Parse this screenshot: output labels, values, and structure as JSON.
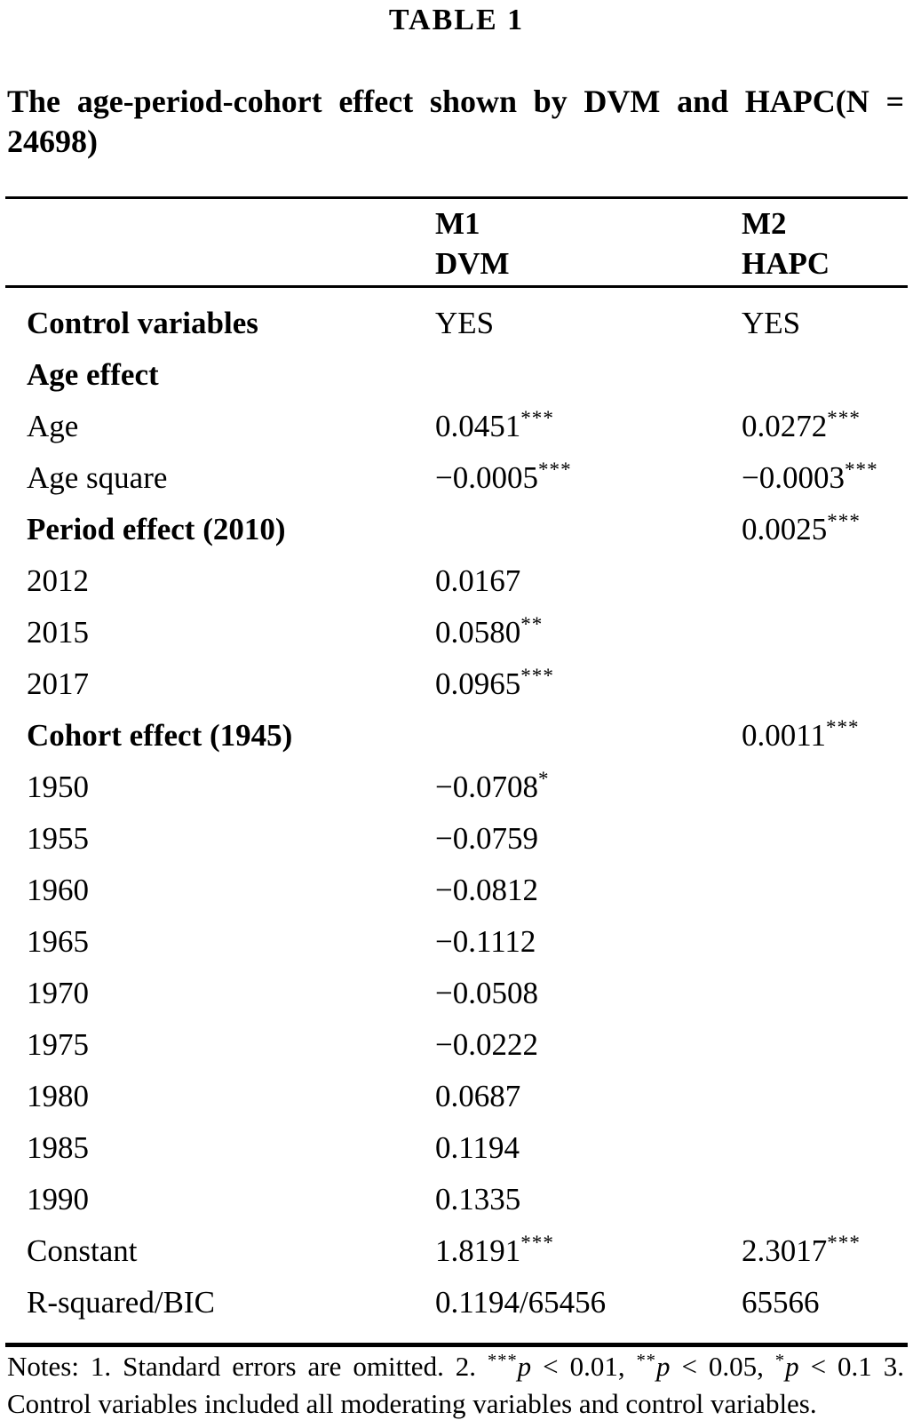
{
  "heading": "TABLE 1",
  "caption": {
    "full": "The age-period-cohort effect shown by DVM and HAPC(N = 24698)",
    "line1": "The age-period-cohort effect shown by DVM and HAPC(N =",
    "line2": "24698)"
  },
  "columns": [
    {
      "id": "m1",
      "line1": "M1",
      "line2": "DVM"
    },
    {
      "id": "m2",
      "line1": "M2",
      "line2": "HAPC"
    }
  ],
  "rows": [
    {
      "label": "Control variables",
      "bold": true,
      "m1": "YES",
      "m1_sup": "",
      "m2": "YES",
      "m2_sup": ""
    },
    {
      "label": "Age effect",
      "bold": true,
      "m1": "",
      "m1_sup": "",
      "m2": "",
      "m2_sup": ""
    },
    {
      "label": "Age",
      "bold": false,
      "m1": "0.0451",
      "m1_sup": "***",
      "m2": "0.0272",
      "m2_sup": "***"
    },
    {
      "label": "Age square",
      "bold": false,
      "m1": "−0.0005",
      "m1_sup": "***",
      "m2": "−0.0003",
      "m2_sup": "***"
    },
    {
      "label": "Period effect (2010)",
      "bold": true,
      "m1": "",
      "m1_sup": "",
      "m2": "0.0025",
      "m2_sup": "***"
    },
    {
      "label": "2012",
      "bold": false,
      "m1": "0.0167",
      "m1_sup": "",
      "m2": "",
      "m2_sup": ""
    },
    {
      "label": "2015",
      "bold": false,
      "m1": "0.0580",
      "m1_sup": "**",
      "m2": "",
      "m2_sup": ""
    },
    {
      "label": "2017",
      "bold": false,
      "m1": "0.0965",
      "m1_sup": "***",
      "m2": "",
      "m2_sup": ""
    },
    {
      "label": "Cohort effect (1945)",
      "bold": true,
      "m1": "",
      "m1_sup": "",
      "m2": "0.0011",
      "m2_sup": "***"
    },
    {
      "label": "1950",
      "bold": false,
      "m1": "−0.0708",
      "m1_sup": "*",
      "m2": "",
      "m2_sup": ""
    },
    {
      "label": "1955",
      "bold": false,
      "m1": "−0.0759",
      "m1_sup": "",
      "m2": "",
      "m2_sup": ""
    },
    {
      "label": "1960",
      "bold": false,
      "m1": "−0.0812",
      "m1_sup": "",
      "m2": "",
      "m2_sup": ""
    },
    {
      "label": "1965",
      "bold": false,
      "m1": "−0.1112",
      "m1_sup": "",
      "m2": "",
      "m2_sup": ""
    },
    {
      "label": "1970",
      "bold": false,
      "m1": "−0.0508",
      "m1_sup": "",
      "m2": "",
      "m2_sup": ""
    },
    {
      "label": "1975",
      "bold": false,
      "m1": "−0.0222",
      "m1_sup": "",
      "m2": "",
      "m2_sup": ""
    },
    {
      "label": "1980",
      "bold": false,
      "m1": "0.0687",
      "m1_sup": "",
      "m2": "",
      "m2_sup": ""
    },
    {
      "label": "1985",
      "bold": false,
      "m1": "0.1194",
      "m1_sup": "",
      "m2": "",
      "m2_sup": ""
    },
    {
      "label": "1990",
      "bold": false,
      "m1": "0.1335",
      "m1_sup": "",
      "m2": "",
      "m2_sup": ""
    },
    {
      "label": "Constant",
      "bold": false,
      "m1": "1.8191",
      "m1_sup": "***",
      "m2": "2.3017",
      "m2_sup": "***"
    },
    {
      "label": "R-squared/BIC",
      "bold": false,
      "m1": "0.1194/65456",
      "m1_sup": "",
      "m2": "65566",
      "m2_sup": ""
    }
  ],
  "notes": {
    "segments": [
      {
        "text": "Notes: 1. Standard errors are omitted. 2. "
      },
      {
        "sup": "***"
      },
      {
        "italic": "p"
      },
      {
        "text": " < 0.01, "
      },
      {
        "sup": "**"
      },
      {
        "italic": "p"
      },
      {
        "text": " < 0.05, "
      },
      {
        "sup": "*"
      },
      {
        "italic": "p"
      },
      {
        "text": " < 0.1 3. Control variables included all moderating variables and control variables."
      }
    ]
  },
  "colors": {
    "text": "#000000",
    "background": "#ffffff",
    "rule": "#000000"
  }
}
